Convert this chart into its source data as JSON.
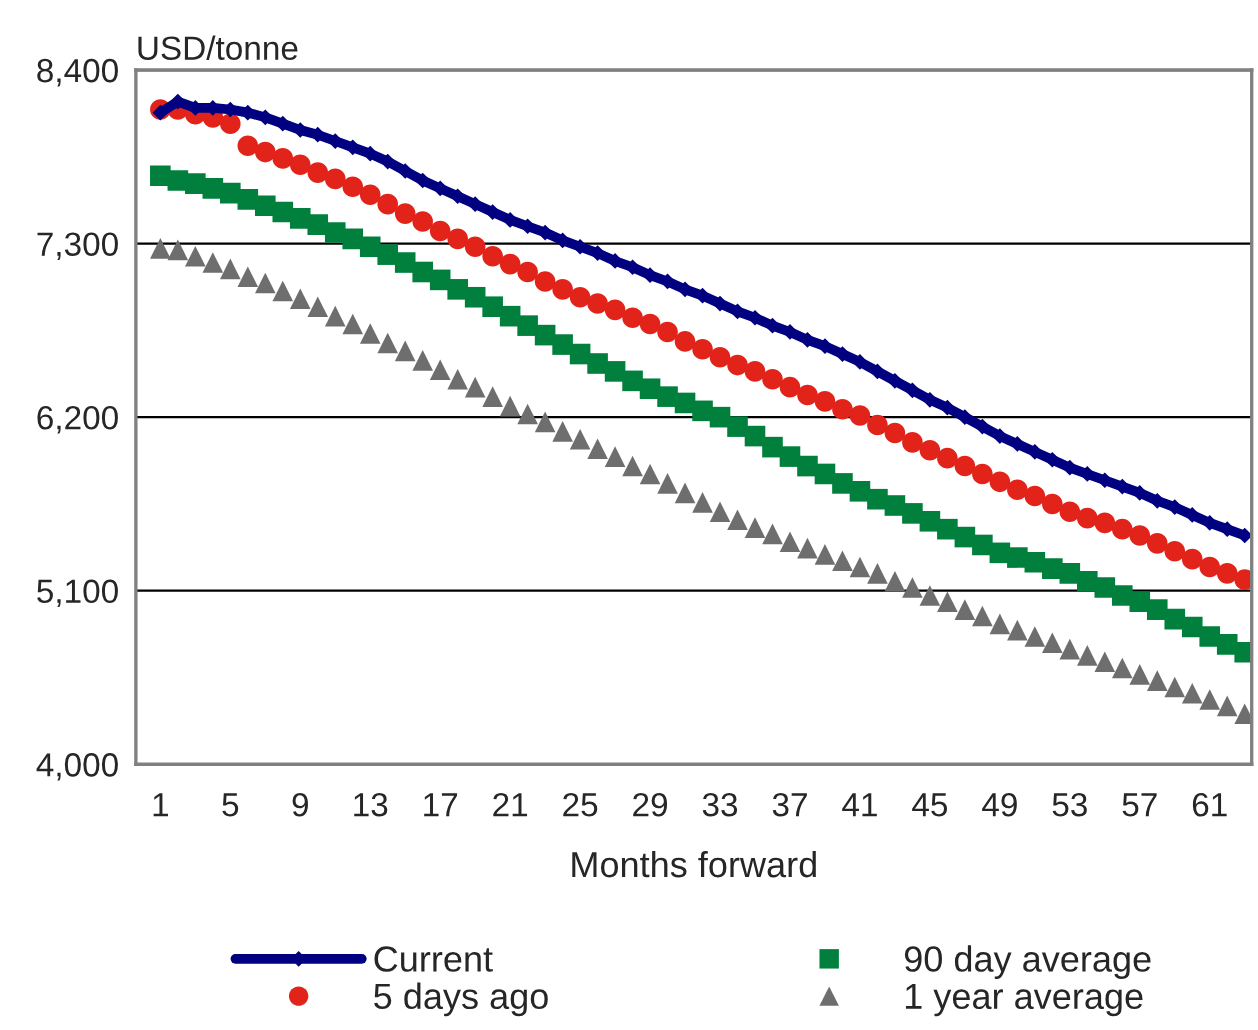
{
  "chart_data": {
    "type": "scatter",
    "ylabel": "USD/tonne",
    "xlabel": "Months forward",
    "categories": [
      "1",
      null,
      null,
      null,
      "5",
      null,
      null,
      null,
      "9",
      null,
      null,
      null,
      "13",
      null,
      null,
      null,
      "17",
      null,
      null,
      null,
      "21",
      null,
      null,
      null,
      "25",
      null,
      null,
      null,
      "29",
      null,
      null,
      null,
      "33",
      null,
      null,
      null,
      "37",
      null,
      null,
      null,
      "41",
      null,
      null,
      null,
      "45",
      null,
      null,
      null,
      "49",
      null,
      null,
      null,
      "53",
      null,
      null,
      null,
      "57",
      null,
      null,
      null,
      "61",
      null,
      null
    ],
    "ylim": [
      4000,
      8400
    ],
    "yticks": [
      {
        "value": 4000,
        "label": "4,000"
      },
      {
        "value": 5100,
        "label": "5,100"
      },
      {
        "value": 6200,
        "label": "6,200"
      },
      {
        "value": 7300,
        "label": "7,300"
      },
      {
        "value": 8400,
        "label": "8,400"
      }
    ],
    "grid": "y",
    "legend": "bottom",
    "series": [
      {
        "name": "Current",
        "type": "line",
        "marker": "diamond",
        "color": "#000080",
        "values": [
          8130,
          8200,
          8160,
          8160,
          8150,
          8130,
          8100,
          8060,
          8020,
          7990,
          7950,
          7910,
          7870,
          7820,
          7760,
          7700,
          7650,
          7600,
          7550,
          7500,
          7450,
          7410,
          7370,
          7320,
          7280,
          7240,
          7190,
          7150,
          7100,
          7060,
          7010,
          6970,
          6920,
          6870,
          6830,
          6780,
          6740,
          6690,
          6650,
          6600,
          6550,
          6490,
          6430,
          6370,
          6310,
          6260,
          6200,
          6140,
          6080,
          6030,
          5980,
          5930,
          5880,
          5840,
          5800,
          5760,
          5720,
          5670,
          5630,
          5580,
          5530,
          5490,
          5450
        ]
      },
      {
        "name": "5 days ago",
        "marker": "circle",
        "color": "#e2231a",
        "values": [
          8150,
          8150,
          8120,
          8100,
          8060,
          7920,
          7880,
          7840,
          7800,
          7750,
          7710,
          7660,
          7610,
          7550,
          7490,
          7440,
          7380,
          7330,
          7280,
          7220,
          7170,
          7120,
          7060,
          7010,
          6960,
          6920,
          6880,
          6830,
          6790,
          6740,
          6680,
          6630,
          6580,
          6530,
          6490,
          6440,
          6390,
          6340,
          6300,
          6250,
          6210,
          6150,
          6100,
          6040,
          5990,
          5940,
          5890,
          5840,
          5790,
          5740,
          5700,
          5650,
          5600,
          5560,
          5530,
          5490,
          5450,
          5400,
          5350,
          5300,
          5250,
          5210,
          5170
        ]
      },
      {
        "name": "90 day average",
        "marker": "square",
        "color": "#00803c",
        "values": [
          7730,
          7700,
          7680,
          7650,
          7620,
          7580,
          7540,
          7500,
          7460,
          7420,
          7370,
          7330,
          7280,
          7230,
          7180,
          7120,
          7070,
          7010,
          6960,
          6900,
          6840,
          6780,
          6720,
          6660,
          6600,
          6540,
          6490,
          6430,
          6380,
          6330,
          6290,
          6240,
          6200,
          6140,
          6080,
          6010,
          5950,
          5890,
          5840,
          5780,
          5730,
          5680,
          5640,
          5590,
          5540,
          5490,
          5440,
          5390,
          5340,
          5310,
          5280,
          5240,
          5210,
          5160,
          5120,
          5070,
          5030,
          4980,
          4920,
          4870,
          4810,
          4760,
          4710
        ]
      },
      {
        "name": "1 year average",
        "marker": "triangle",
        "color": "#6e6e6e",
        "values": [
          7270,
          7260,
          7220,
          7180,
          7140,
          7090,
          7050,
          7000,
          6950,
          6900,
          6840,
          6790,
          6730,
          6670,
          6620,
          6560,
          6500,
          6440,
          6390,
          6330,
          6270,
          6220,
          6170,
          6110,
          6060,
          6000,
          5950,
          5890,
          5840,
          5780,
          5720,
          5660,
          5600,
          5550,
          5500,
          5460,
          5410,
          5370,
          5330,
          5290,
          5250,
          5210,
          5160,
          5120,
          5070,
          5030,
          4980,
          4940,
          4890,
          4850,
          4810,
          4770,
          4730,
          4690,
          4650,
          4610,
          4570,
          4530,
          4490,
          4450,
          4410,
          4370,
          4320
        ]
      }
    ]
  }
}
